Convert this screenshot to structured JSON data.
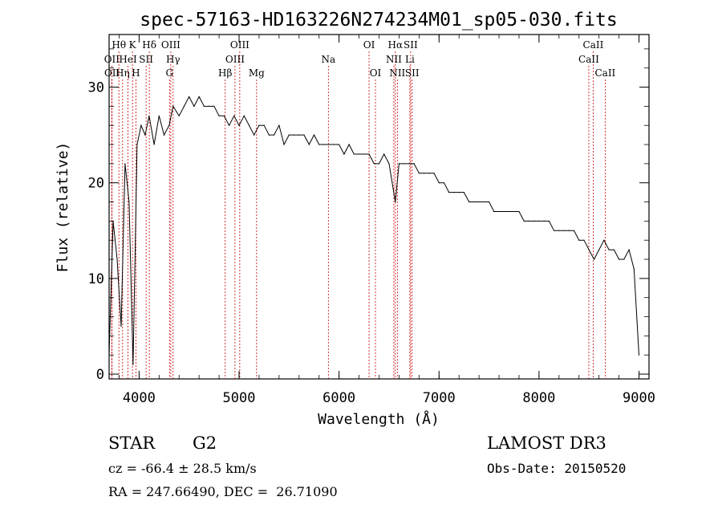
{
  "chart_data": {
    "type": "line",
    "title": "spec-57163-HD163226N274234M01_sp05-030.fits",
    "xlabel": "Wavelength (Å)",
    "ylabel": "Flux (relative)",
    "xlim": [
      3700,
      9100
    ],
    "ylim": [
      -0.5,
      35.5
    ],
    "xticks": [
      4000,
      5000,
      6000,
      7000,
      8000,
      9000
    ],
    "yticks": [
      0,
      10,
      20,
      30
    ],
    "series": [
      {
        "name": "spectrum",
        "x": [
          3700,
          3740,
          3780,
          3820,
          3860,
          3900,
          3940,
          3980,
          4020,
          4060,
          4100,
          4150,
          4200,
          4250,
          4300,
          4340,
          4400,
          4450,
          4500,
          4550,
          4600,
          4650,
          4700,
          4750,
          4800,
          4850,
          4900,
          4950,
          5000,
          5050,
          5100,
          5150,
          5200,
          5250,
          5300,
          5350,
          5400,
          5450,
          5500,
          5550,
          5600,
          5650,
          5700,
          5750,
          5800,
          5850,
          5900,
          5950,
          6000,
          6050,
          6100,
          6150,
          6200,
          6250,
          6300,
          6350,
          6400,
          6450,
          6500,
          6563,
          6600,
          6650,
          6700,
          6750,
          6800,
          6850,
          6900,
          6950,
          7000,
          7050,
          7100,
          7150,
          7200,
          7250,
          7300,
          7350,
          7400,
          7450,
          7500,
          7550,
          7600,
          7650,
          7700,
          7750,
          7800,
          7850,
          7900,
          7950,
          8000,
          8050,
          8100,
          8150,
          8200,
          8250,
          8300,
          8350,
          8400,
          8450,
          8500,
          8550,
          8600,
          8650,
          8700,
          8750,
          8800,
          8850,
          8900,
          8950,
          9000
        ],
        "y": [
          2,
          16,
          12,
          5,
          22,
          18,
          1,
          24,
          26,
          25,
          27,
          24,
          27,
          25,
          26,
          28,
          27,
          28,
          29,
          28,
          29,
          28,
          28,
          28,
          27,
          27,
          26,
          27,
          26,
          27,
          26,
          25,
          26,
          26,
          25,
          25,
          26,
          24,
          25,
          25,
          25,
          25,
          24,
          25,
          24,
          24,
          24,
          24,
          24,
          23,
          24,
          23,
          23,
          23,
          23,
          22,
          22,
          23,
          22,
          18,
          22,
          22,
          22,
          22,
          21,
          21,
          21,
          21,
          20,
          20,
          19,
          19,
          19,
          19,
          18,
          18,
          18,
          18,
          18,
          17,
          17,
          17,
          17,
          17,
          17,
          16,
          16,
          16,
          16,
          16,
          16,
          15,
          15,
          15,
          15,
          15,
          14,
          14,
          13,
          12,
          13,
          14,
          13,
          13,
          12,
          12,
          13,
          11,
          2
        ]
      }
    ],
    "emission_lines": [
      {
        "label": "OII",
        "x": 3727,
        "row": 2
      },
      {
        "label": "OII",
        "x": 3729,
        "row": 3
      },
      {
        "label": "Hθ",
        "x": 3798,
        "row": 1
      },
      {
        "label": "Hη",
        "x": 3835,
        "row": 3
      },
      {
        "label": "HeI",
        "x": 3889,
        "row": 2
      },
      {
        "label": "K",
        "x": 3934,
        "row": 1
      },
      {
        "label": "H",
        "x": 3968,
        "row": 3
      },
      {
        "label": "SII",
        "x": 4070,
        "row": 2
      },
      {
        "label": "Hδ",
        "x": 4102,
        "row": 1
      },
      {
        "label": "OIII",
        "x": 4317,
        "row": 1
      },
      {
        "label": "Hγ",
        "x": 4340,
        "row": 2
      },
      {
        "label": "G",
        "x": 4304,
        "row": 3
      },
      {
        "label": "Hβ",
        "x": 4861,
        "row": 3
      },
      {
        "label": "OIII",
        "x": 4959,
        "row": 2
      },
      {
        "label": "OIII",
        "x": 5007,
        "row": 1
      },
      {
        "label": "Mg",
        "x": 5175,
        "row": 3
      },
      {
        "label": "Na",
        "x": 5893,
        "row": 2
      },
      {
        "label": "OI",
        "x": 6300,
        "row": 1
      },
      {
        "label": "OI",
        "x": 6364,
        "row": 3
      },
      {
        "label": "Hα",
        "x": 6563,
        "row": 1
      },
      {
        "label": "NII",
        "x": 6548,
        "row": 2
      },
      {
        "label": "NII",
        "x": 6583,
        "row": 3
      },
      {
        "label": "SII",
        "x": 6716,
        "row": 1
      },
      {
        "label": "Li",
        "x": 6708,
        "row": 2
      },
      {
        "label": "SII",
        "x": 6731,
        "row": 3
      },
      {
        "label": "CaII",
        "x": 8542,
        "row": 1
      },
      {
        "label": "CaII",
        "x": 8498,
        "row": 2
      },
      {
        "label": "CaII",
        "x": 8662,
        "row": 3
      }
    ]
  },
  "info": {
    "class": "STAR",
    "subclass": "G2",
    "survey": "LAMOST DR3",
    "cz": "cz = -66.4 ± 28.5 km/s",
    "obs_date": "Obs-Date: 20150520",
    "radec": "RA = 247.66490, DEC =  26.71090"
  },
  "colors": {
    "line_marker": "#cc0000",
    "spectrum": "#000000",
    "axes": "#000000"
  }
}
